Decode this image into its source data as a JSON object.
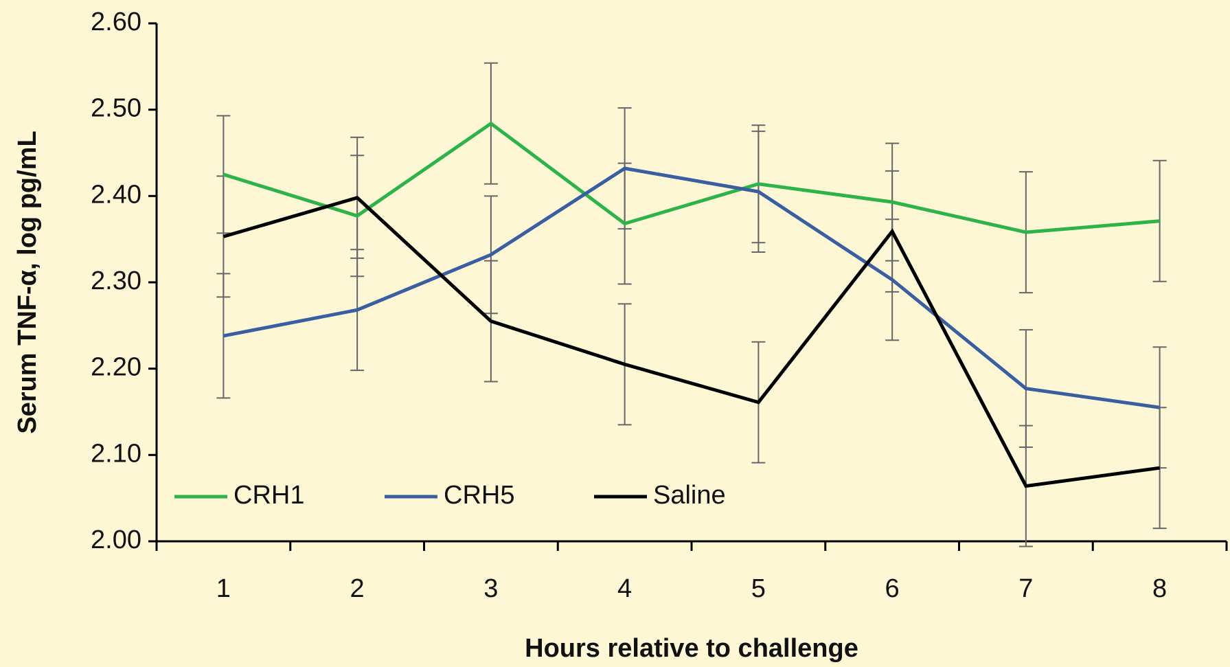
{
  "chart_data": {
    "type": "line",
    "xlabel": "Hours relative to challenge",
    "ylabel": "Serum TNF-α, log  pg/mL",
    "categories": [
      "1",
      "2",
      "3",
      "4",
      "5",
      "6",
      "7",
      "8"
    ],
    "series": [
      {
        "name": "CRH1",
        "color": "#2db34a",
        "values": [
          2.425,
          2.377,
          2.484,
          2.368,
          2.414,
          2.393,
          2.358,
          2.371
        ],
        "errors": [
          0.068,
          0.07,
          0.07,
          0.07,
          0.068,
          0.068,
          0.07,
          0.07
        ]
      },
      {
        "name": "CRH5",
        "color": "#3a5fa0",
        "values": [
          2.238,
          2.268,
          2.332,
          2.432,
          2.405,
          2.303,
          2.177,
          2.155
        ],
        "errors": [
          0.072,
          0.07,
          0.068,
          0.07,
          0.07,
          0.07,
          0.068,
          0.07
        ]
      },
      {
        "name": "Saline",
        "color": "#000000",
        "values": [
          2.353,
          2.398,
          2.255,
          2.205,
          2.161,
          2.359,
          2.064,
          2.085
        ],
        "errors": [
          0.07,
          0.07,
          0.07,
          0.07,
          0.07,
          0.07,
          0.07,
          0.07
        ]
      }
    ],
    "ylim": [
      2.0,
      2.6
    ],
    "yticks": [
      {
        "value": 2.0,
        "label": "2.00"
      },
      {
        "value": 2.1,
        "label": "2.10"
      },
      {
        "value": 2.2,
        "label": "2.20"
      },
      {
        "value": 2.3,
        "label": "2.30"
      },
      {
        "value": 2.4,
        "label": "2.40"
      },
      {
        "value": 2.5,
        "label": "2.50"
      },
      {
        "value": 2.6,
        "label": "2.60"
      }
    ],
    "grid": false,
    "legend": "lower left"
  }
}
